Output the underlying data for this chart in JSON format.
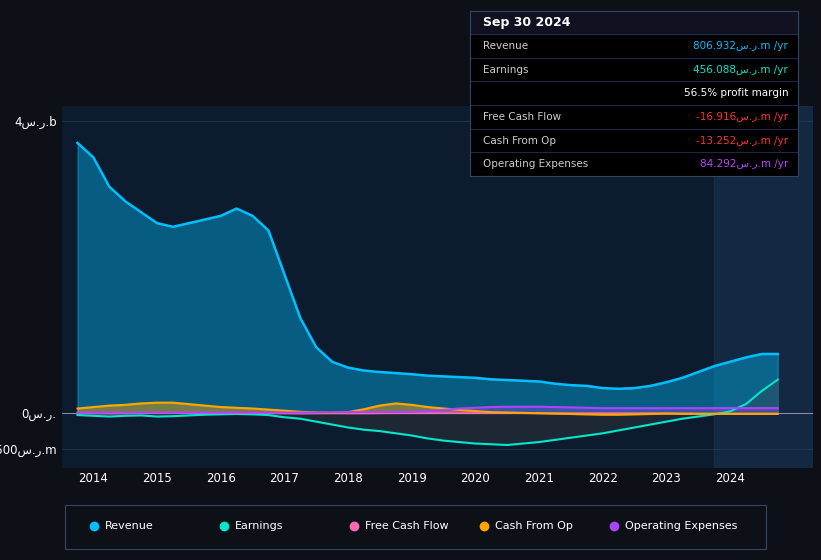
{
  "bg_color": "#0d1117",
  "chart_bg": "#0d1b2e",
  "grid_color": "#263d5a",
  "title_text": "Sep 30 2024",
  "table": {
    "Revenue": {
      "label": "Revenue",
      "value": "806.932س.ر.m /yr",
      "color": "#00bfff"
    },
    "Earnings": {
      "label": "Earnings",
      "value": "456.088س.ر.m /yr",
      "color": "#00e8cc"
    },
    "margin": {
      "label": "",
      "value": "56.5% profit margin",
      "color": "#ffffff"
    },
    "Free Cash Flow": {
      "label": "Free Cash Flow",
      "value": "-16.916س.ر.m /yr",
      "color": "#ff3333"
    },
    "Cash From Op": {
      "label": "Cash From Op",
      "value": "-13.252س.ر.m /yr",
      "color": "#ff3333"
    },
    "Operating Expenses": {
      "label": "Operating Expenses",
      "value": "84.292س.ر.m /yr",
      "color": "#bb44ff"
    }
  },
  "yticks": [
    4000,
    0,
    -500
  ],
  "ytick_labels": [
    "4س.ر.b",
    "0س.ر.",
    "-500س.ر.m"
  ],
  "ylim_top": 4200,
  "ylim_bottom": -750,
  "xtick_labels": [
    "2014",
    "2015",
    "2016",
    "2017",
    "2018",
    "2019",
    "2020",
    "2021",
    "2022",
    "2023",
    "2024"
  ],
  "xtick_positions": [
    2014,
    2015,
    2016,
    2017,
    2018,
    2019,
    2020,
    2021,
    2022,
    2023,
    2024
  ],
  "xlim": [
    2013.5,
    2025.3
  ],
  "colors": {
    "revenue": "#00bfff",
    "earnings": "#00e8cc",
    "free_cash_flow": "#ff69b4",
    "cash_from_op": "#ffa500",
    "operating_expenses": "#aa44ff"
  },
  "legend": [
    {
      "label": "Revenue",
      "color": "#00bfff"
    },
    {
      "label": "Earnings",
      "color": "#00e8cc"
    },
    {
      "label": "Free Cash Flow",
      "color": "#ff69b4"
    },
    {
      "label": "Cash From Op",
      "color": "#ffa500"
    },
    {
      "label": "Operating Expenses",
      "color": "#aa44ff"
    }
  ],
  "x": [
    2013.75,
    2014.0,
    2014.25,
    2014.5,
    2014.75,
    2015.0,
    2015.25,
    2015.5,
    2015.75,
    2016.0,
    2016.25,
    2016.5,
    2016.75,
    2017.0,
    2017.25,
    2017.5,
    2017.75,
    2018.0,
    2018.25,
    2018.5,
    2018.75,
    2019.0,
    2019.25,
    2019.5,
    2019.75,
    2020.0,
    2020.25,
    2020.5,
    2020.75,
    2021.0,
    2021.25,
    2021.5,
    2021.75,
    2022.0,
    2022.25,
    2022.5,
    2022.75,
    2023.0,
    2023.25,
    2023.5,
    2023.75,
    2024.0,
    2024.25,
    2024.5,
    2024.75
  ],
  "revenue": [
    3700,
    3500,
    3100,
    2900,
    2750,
    2600,
    2550,
    2600,
    2650,
    2700,
    2800,
    2700,
    2500,
    1900,
    1300,
    900,
    700,
    620,
    580,
    560,
    545,
    530,
    510,
    500,
    490,
    480,
    460,
    450,
    440,
    430,
    400,
    380,
    370,
    340,
    330,
    340,
    370,
    420,
    480,
    560,
    640,
    700,
    760,
    807,
    807
  ],
  "earnings": [
    -30,
    -40,
    -50,
    -40,
    -35,
    -50,
    -45,
    -35,
    -25,
    -20,
    -15,
    -20,
    -30,
    -60,
    -80,
    -120,
    -160,
    -200,
    -230,
    -250,
    -280,
    -310,
    -350,
    -380,
    -400,
    -420,
    -430,
    -440,
    -420,
    -400,
    -370,
    -340,
    -310,
    -280,
    -240,
    -200,
    -160,
    -120,
    -80,
    -50,
    -20,
    20,
    120,
    300,
    456
  ],
  "free_cash_flow": [
    -5,
    -8,
    -10,
    -8,
    -6,
    -5,
    -5,
    -5,
    -5,
    -5,
    -4,
    -4,
    -5,
    -8,
    -10,
    -8,
    -7,
    -8,
    -8,
    -6,
    -5,
    -5,
    -5,
    -5,
    -5,
    -5,
    -5,
    -5,
    -5,
    -5,
    -5,
    -5,
    -5,
    -5,
    -5,
    -5,
    -5,
    -8,
    -10,
    -14,
    -15,
    -17,
    -17,
    -17,
    -17
  ],
  "cash_from_op": [
    60,
    80,
    100,
    110,
    130,
    140,
    140,
    120,
    100,
    80,
    70,
    60,
    45,
    30,
    15,
    5,
    0,
    10,
    50,
    100,
    130,
    110,
    80,
    60,
    40,
    25,
    10,
    5,
    0,
    -5,
    -10,
    -15,
    -20,
    -25,
    -25,
    -20,
    -15,
    -10,
    -13,
    -13,
    -13,
    -13,
    -13,
    -13,
    -13
  ],
  "operating_expenses": [
    3,
    3,
    4,
    4,
    4,
    4,
    4,
    4,
    4,
    4,
    4,
    4,
    4,
    4,
    4,
    5,
    8,
    10,
    12,
    12,
    12,
    15,
    25,
    40,
    60,
    70,
    80,
    84,
    84,
    84,
    80,
    75,
    70,
    65,
    65,
    65,
    65,
    65,
    65,
    65,
    65,
    65,
    65,
    65,
    65
  ]
}
